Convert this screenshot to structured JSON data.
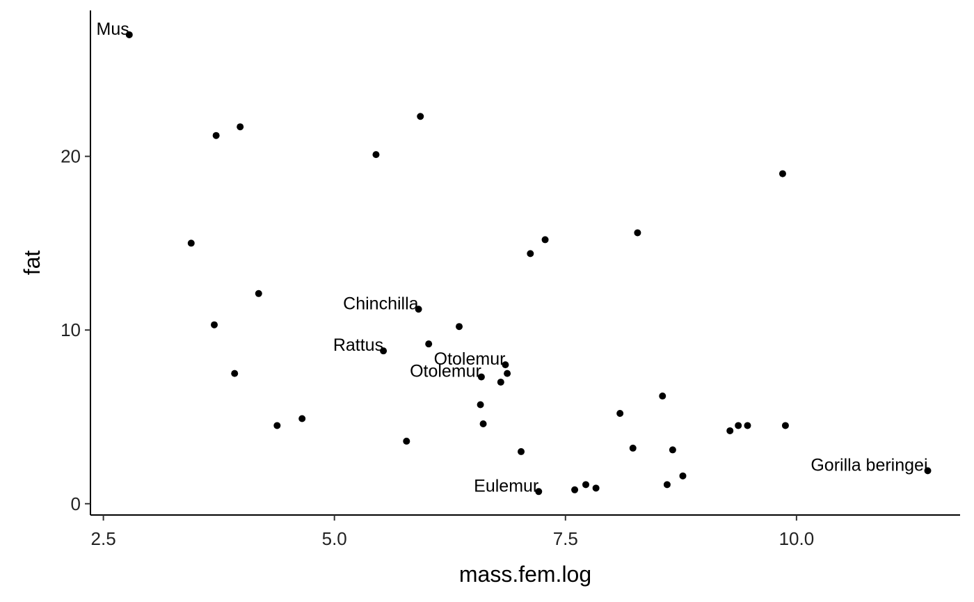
{
  "chart_data": {
    "type": "scatter",
    "title": "",
    "xlabel": "mass.fem.log",
    "ylabel": "fat",
    "xlim": [
      2.36,
      11.77
    ],
    "ylim": [
      -0.65,
      28.4
    ],
    "x_ticks": [
      2.5,
      5.0,
      7.5,
      10.0
    ],
    "x_tick_labels": [
      "2.5",
      "5.0",
      "7.5",
      "10.0"
    ],
    "y_ticks": [
      0,
      10,
      20
    ],
    "y_tick_labels": [
      "0",
      "10",
      "20"
    ],
    "grid": false,
    "legend": "none",
    "point_color": "#000000",
    "points": [
      {
        "x": 2.78,
        "y": 27.0,
        "label": "Mus"
      },
      {
        "x": 3.45,
        "y": 15.0
      },
      {
        "x": 3.7,
        "y": 10.3
      },
      {
        "x": 3.72,
        "y": 21.2
      },
      {
        "x": 3.92,
        "y": 7.5
      },
      {
        "x": 3.98,
        "y": 21.7
      },
      {
        "x": 4.18,
        "y": 12.1
      },
      {
        "x": 4.38,
        "y": 4.5
      },
      {
        "x": 4.65,
        "y": 4.9
      },
      {
        "x": 5.45,
        "y": 20.1
      },
      {
        "x": 5.53,
        "y": 8.8,
        "label": "Rattus"
      },
      {
        "x": 5.78,
        "y": 3.6
      },
      {
        "x": 5.91,
        "y": 11.2,
        "label": "Chinchilla"
      },
      {
        "x": 5.93,
        "y": 22.3
      },
      {
        "x": 6.02,
        "y": 9.2
      },
      {
        "x": 6.35,
        "y": 10.2
      },
      {
        "x": 6.58,
        "y": 5.7
      },
      {
        "x": 6.59,
        "y": 7.3,
        "label": "Otolemur"
      },
      {
        "x": 6.61,
        "y": 4.6
      },
      {
        "x": 6.8,
        "y": 7.0
      },
      {
        "x": 6.85,
        "y": 8.0,
        "label": "Otolemur"
      },
      {
        "x": 6.87,
        "y": 7.5
      },
      {
        "x": 7.02,
        "y": 3.0
      },
      {
        "x": 7.12,
        "y": 14.4
      },
      {
        "x": 7.21,
        "y": 0.7,
        "label": "Eulemur"
      },
      {
        "x": 7.28,
        "y": 15.2
      },
      {
        "x": 7.6,
        "y": 0.8
      },
      {
        "x": 7.72,
        "y": 1.1
      },
      {
        "x": 7.83,
        "y": 0.9
      },
      {
        "x": 8.09,
        "y": 5.2
      },
      {
        "x": 8.23,
        "y": 3.2
      },
      {
        "x": 8.28,
        "y": 15.6
      },
      {
        "x": 8.55,
        "y": 6.2
      },
      {
        "x": 8.6,
        "y": 1.1
      },
      {
        "x": 8.66,
        "y": 3.1
      },
      {
        "x": 8.77,
        "y": 1.6
      },
      {
        "x": 9.28,
        "y": 4.2
      },
      {
        "x": 9.37,
        "y": 4.5
      },
      {
        "x": 9.47,
        "y": 4.5
      },
      {
        "x": 9.85,
        "y": 19.0
      },
      {
        "x": 9.88,
        "y": 4.5
      },
      {
        "x": 11.42,
        "y": 1.9,
        "label": "Gorilla beringei"
      }
    ]
  }
}
